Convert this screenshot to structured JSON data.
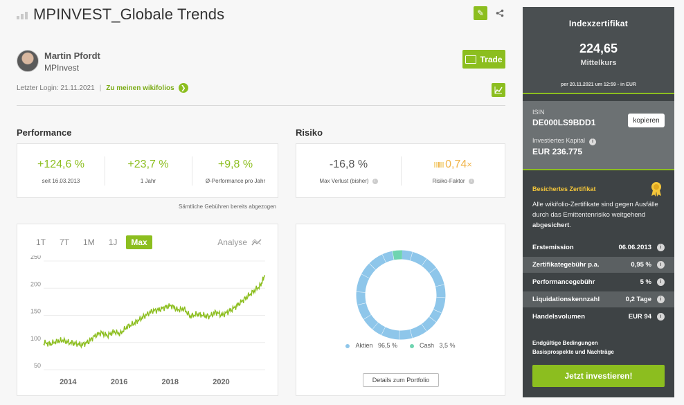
{
  "header": {
    "title": "MPINVEST_Globale Trends"
  },
  "trader": {
    "name": "Martin Pfordt",
    "company": "MPInvest",
    "last_login": "Letzter Login: 21.11.2021",
    "separator": "|",
    "wikifolios_link": "Zu meinen wikifolios"
  },
  "actions": {
    "trade_label": "Trade"
  },
  "performance": {
    "heading": "Performance",
    "kpis": [
      {
        "value": "+124,6 %",
        "label": "seit 16.03.2013"
      },
      {
        "value": "+23,7 %",
        "label": "1 Jahr"
      },
      {
        "value": "+9,8 %",
        "label": "Ø-Performance pro Jahr"
      }
    ],
    "fee_note": "Sämtliche Gebühren bereits abgezogen"
  },
  "risk": {
    "heading": "Risiko",
    "max_loss": {
      "value": "-16,8 %",
      "label": "Max Verlust (bisher)"
    },
    "risk_factor": {
      "value": "0,74",
      "suffix": "×",
      "label": "Risiko-Faktor"
    }
  },
  "chart_tabs": {
    "items": [
      "1T",
      "7T",
      "1M",
      "1J",
      "Max"
    ],
    "active": "Max",
    "analyse_label": "Analyse"
  },
  "chart_data": {
    "type": "line",
    "title": "",
    "xlabel": "",
    "ylabel": "",
    "x_ticks": [
      "2014",
      "2016",
      "2018",
      "2020"
    ],
    "y_ticks": [
      250,
      200,
      150,
      100,
      50
    ],
    "ylim": [
      50,
      250
    ],
    "xlim": [
      "2013-03-16",
      "2021-11-20"
    ],
    "grid": true,
    "color": "#8cbe1f",
    "series": [
      {
        "x": [
          "2013-03",
          "2013-06",
          "2013-09",
          "2013-12",
          "2014-03",
          "2014-06",
          "2014-09",
          "2014-12",
          "2015-03",
          "2015-06",
          "2015-09",
          "2015-12",
          "2016-03",
          "2016-06",
          "2016-09",
          "2016-12",
          "2017-03",
          "2017-06",
          "2017-09",
          "2017-12",
          "2018-03",
          "2018-06",
          "2018-09",
          "2018-12",
          "2019-03",
          "2019-06",
          "2019-09",
          "2019-12",
          "2020-03",
          "2020-06",
          "2020-09",
          "2020-12",
          "2021-03",
          "2021-06",
          "2021-09",
          "2021-11"
        ],
        "values": [
          100,
          97,
          102,
          104,
          100,
          98,
          96,
          101,
          112,
          118,
          113,
          120,
          116,
          128,
          134,
          142,
          150,
          158,
          160,
          165,
          168,
          160,
          162,
          148,
          152,
          150,
          148,
          156,
          150,
          157,
          165,
          175,
          185,
          195,
          205,
          224
        ]
      }
    ]
  },
  "portfolio": {
    "legend": [
      {
        "label": "Aktien",
        "value": "96,5 %",
        "color": "#8ec6ea"
      },
      {
        "label": "Cash",
        "value": "3,5 %",
        "color": "#6fd4b0"
      }
    ],
    "details_button": "Details zum Portfolio"
  },
  "certificate": {
    "title": "Indexzertifikat",
    "price": "224,65",
    "price_label": "Mittelkurs",
    "price_date": "per 20.11.2021 um 12:59 - in EUR",
    "isin_label": "ISIN",
    "isin": "DE000LS9BDD1",
    "copy_label": "kopieren",
    "capital_label": "Investiertes Kapital",
    "capital": "EUR 236.775",
    "secured_title": "Besichertes Zertifikat",
    "secured_text_1": "Alle wikifolio-Zertifikate sind gegen Ausfälle durch das Emittentenrisiko weitgehend",
    "secured_text_bold": "abgesichert",
    "secured_text_end": ".",
    "facts": [
      {
        "label": "Erstemission",
        "value": "06.06.2013"
      },
      {
        "label": "Zertifikategebühr p.a.",
        "value": "0,95 %"
      },
      {
        "label": "Performancegebühr",
        "value": "5 %"
      },
      {
        "label": "Liquidationskennzahl",
        "value": "0,2 Tage"
      },
      {
        "label": "Handelsvolumen",
        "value": "EUR 94"
      }
    ],
    "link_terms": "Endgültige Bedingungen",
    "link_prospect": "Basisprospekte und Nachträge",
    "invest_button": "Jetzt investieren!"
  },
  "colors": {
    "accent": "#8cbe1f",
    "panel_dark": "#3e4345",
    "risk_orange": "#f0b44a",
    "aktien": "#8ec6ea",
    "cash": "#6fd4b0"
  }
}
